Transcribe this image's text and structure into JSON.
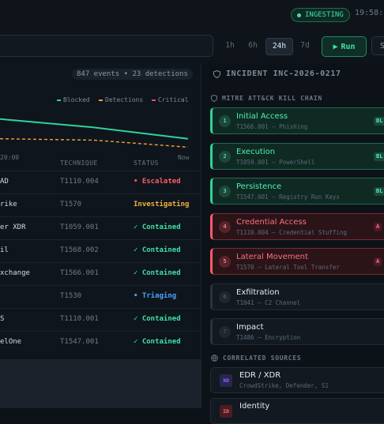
{
  "header": {
    "ingest_label": "INGESTING",
    "clock": "19:58:1"
  },
  "toolbar": {
    "ranges": [
      {
        "label": "1h",
        "active": false
      },
      {
        "label": "6h",
        "active": false
      },
      {
        "label": "24h",
        "active": true
      },
      {
        "label": "7d",
        "active": false
      }
    ],
    "run_label": "Run",
    "run_icon": "play-icon",
    "edge_label": "S"
  },
  "events": {
    "stats": "847 events • 23 detections",
    "legend": [
      {
        "label": "Blocked",
        "color": "#2fd39a"
      },
      {
        "label": "Detections",
        "color": "#f0a23a"
      },
      {
        "label": "Critical",
        "color": "#ff4d5e"
      }
    ],
    "ticks": {
      "left": "20:00",
      "right": "Now"
    }
  },
  "chart_data": {
    "type": "line",
    "x": [
      "",
      "20:00",
      "Now"
    ],
    "series": [
      {
        "name": "Blocked",
        "values": [
          9,
          6,
          2
        ],
        "color": "#2fd39a"
      },
      {
        "name": "Detections",
        "values": [
          2,
          1.5,
          -1
        ],
        "color": "#f0a23a"
      }
    ]
  },
  "table": {
    "headers": {
      "technique": "TECHNIQUE",
      "status": "STATUS"
    },
    "rows": [
      {
        "name": "AD",
        "technique": "T1110.004",
        "status": "Escalated",
        "kind": "red",
        "prefix": "•"
      },
      {
        "name": "rike",
        "technique": "T1570",
        "status": "Investigating",
        "kind": "amber",
        "prefix": ""
      },
      {
        "name": "er XDR",
        "technique": "T1059.001",
        "status": "Contained",
        "kind": "green",
        "prefix": "✓"
      },
      {
        "name": "il",
        "technique": "T1568.002",
        "status": "Contained",
        "kind": "green",
        "prefix": "✓"
      },
      {
        "name": "xchange",
        "technique": "T1566.001",
        "status": "Contained",
        "kind": "green",
        "prefix": "✓"
      },
      {
        "name": "",
        "technique": "T1530",
        "status": "Triaging",
        "kind": "blue",
        "prefix": "•"
      },
      {
        "name": "S",
        "technique": "T1110.001",
        "status": "Contained",
        "kind": "green",
        "prefix": "✓"
      },
      {
        "name": "elOne",
        "technique": "T1547.001",
        "status": "Contained",
        "kind": "green",
        "prefix": "✓"
      }
    ]
  },
  "incident": {
    "title": "INCIDENT INC-2026-0217",
    "chain_title": "MITRE ATT&CK KILL CHAIN",
    "stages": [
      {
        "n": "1",
        "name": "Initial Access",
        "sub": "T1566.001 — Phishing",
        "state": "green",
        "tag": "BL"
      },
      {
        "n": "2",
        "name": "Execution",
        "sub": "T1059.001 — PowerShell",
        "state": "green",
        "tag": "BL"
      },
      {
        "n": "3",
        "name": "Persistence",
        "sub": "T1547.001 — Registry Run Keys",
        "state": "green",
        "tag": "BL"
      },
      {
        "n": "4",
        "name": "Credential Access",
        "sub": "T1110.004 — Credential Stuffing",
        "state": "red",
        "tag": "A"
      },
      {
        "n": "5",
        "name": "Lateral Movement",
        "sub": "T1570 — Lateral Tool Transfer",
        "state": "red",
        "tag": "A"
      },
      {
        "n": "6",
        "name": "Exfiltration",
        "sub": "T1041 — C2 Channel",
        "state": "dim",
        "tag": ""
      },
      {
        "n": "7",
        "name": "Impact",
        "sub": "T1486 — Encryption",
        "state": "dim",
        "tag": ""
      }
    ],
    "sources_title": "CORRELATED SOURCES",
    "sources": [
      {
        "icon": "XD",
        "name": "EDR / XDR",
        "sub": "CrowdStrike, Defender, S1",
        "color": "#8b6cff",
        "bg": "#2a2550"
      },
      {
        "icon": "ID",
        "name": "Identity",
        "sub": "",
        "color": "#ff6a7a",
        "bg": "#4a1d23"
      }
    ]
  },
  "colors": {
    "accent": "#3fe0a8",
    "critical": "#ff5a6a",
    "warning": "#f0b23a",
    "info": "#4aa3ff"
  }
}
